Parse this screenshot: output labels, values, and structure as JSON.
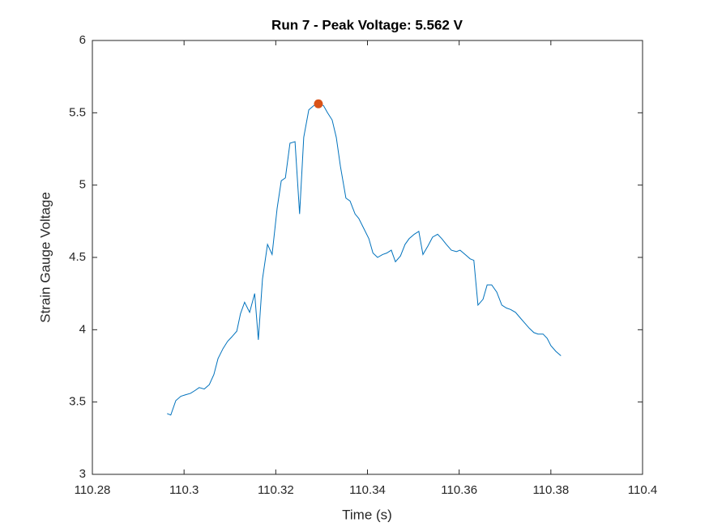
{
  "chart_data": {
    "type": "line",
    "title": "Run 7 - Peak Voltage: 5.562 V",
    "xlabel": "Time (s)",
    "ylabel": "Strain Gauge Voltage",
    "xlim": [
      110.28,
      110.4
    ],
    "xticks": [
      110.28,
      110.3,
      110.32,
      110.34,
      110.36,
      110.38,
      110.4
    ],
    "ylim": [
      3,
      6
    ],
    "yticks": [
      3,
      3.5,
      4,
      4.5,
      5,
      5.5,
      6
    ],
    "grid": false,
    "x": [
      110.2963,
      110.2971,
      110.2982,
      110.2993,
      110.3003,
      110.3014,
      110.3024,
      110.3033,
      110.3044,
      110.3055,
      110.3065,
      110.3074,
      110.3085,
      110.3095,
      110.3104,
      110.3115,
      110.3123,
      110.3132,
      110.3143,
      110.3154,
      110.3162,
      110.3171,
      110.3182,
      110.3192,
      110.3203,
      110.3212,
      110.3221,
      110.3231,
      110.3242,
      110.3252,
      110.3261,
      110.3272,
      110.3283,
      110.3293,
      110.3304,
      110.3313,
      110.3323,
      110.3332,
      110.3341,
      110.3353,
      110.3362,
      110.3373,
      110.3381,
      110.3392,
      110.3403,
      110.3412,
      110.3422,
      110.3433,
      110.3442,
      110.3452,
      110.3461,
      110.3472,
      110.3482,
      110.3491,
      110.3502,
      110.3512,
      110.3521,
      110.3532,
      110.3542,
      110.3553,
      110.3562,
      110.3572,
      110.3583,
      110.3594,
      110.3602,
      110.3613,
      110.3624,
      110.3632,
      110.3641,
      110.3652,
      110.3661,
      110.3671,
      110.3682,
      110.3693,
      110.3703,
      110.3712,
      110.3723,
      110.3731,
      110.3742,
      110.3753,
      110.3763,
      110.3772,
      110.3783,
      110.3792,
      110.38,
      110.3811,
      110.3822
    ],
    "series": [
      {
        "color": "#0072bd",
        "values": [
          3.42,
          3.41,
          3.51,
          3.54,
          3.55,
          3.56,
          3.58,
          3.6,
          3.59,
          3.62,
          3.69,
          3.8,
          3.87,
          3.92,
          3.95,
          3.99,
          4.11,
          4.19,
          4.12,
          4.25,
          3.93,
          4.35,
          4.59,
          4.52,
          4.84,
          5.03,
          5.05,
          5.29,
          5.3,
          4.8,
          5.33,
          5.52,
          5.55,
          5.562,
          5.55,
          5.5,
          5.45,
          5.33,
          5.13,
          4.91,
          4.89,
          4.8,
          4.77,
          4.7,
          4.63,
          4.53,
          4.5,
          4.52,
          4.53,
          4.55,
          4.47,
          4.51,
          4.59,
          4.63,
          4.66,
          4.68,
          4.52,
          4.58,
          4.64,
          4.66,
          4.63,
          4.59,
          4.55,
          4.54,
          4.55,
          4.52,
          4.49,
          4.48,
          4.17,
          4.21,
          4.31,
          4.31,
          4.26,
          4.17,
          4.15,
          4.14,
          4.12,
          4.09,
          4.05,
          4.01,
          3.98,
          3.97,
          3.97,
          3.94,
          3.89,
          3.85,
          3.82
        ]
      }
    ],
    "peak": {
      "x": 110.3293,
      "y": 5.562,
      "color": "#d95319"
    }
  }
}
